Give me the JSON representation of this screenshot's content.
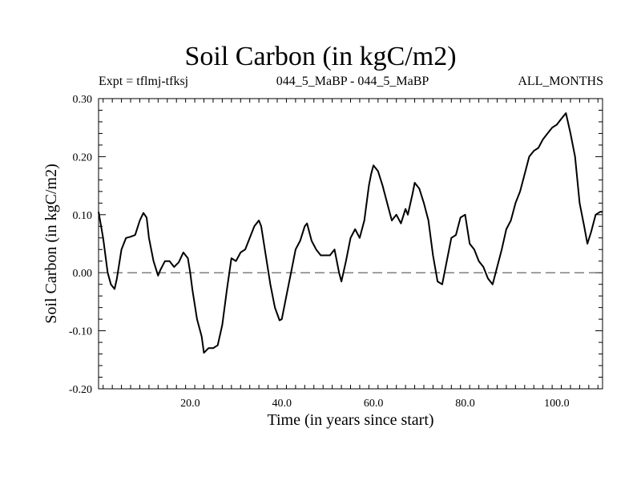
{
  "header": {
    "title": "Soil Carbon (in kgC/m2)",
    "expt": "Expt = tflmj-tfksj",
    "comparison": "044_5_MaBP - 044_5_MaBP",
    "period": "ALL_MONTHS"
  },
  "chart_data": {
    "type": "line",
    "title": "Soil Carbon (in kgC/m2)",
    "xlabel": "Time (in years since start)",
    "ylabel": "Soil Carbon (in kgC/m2)",
    "xlim": [
      0,
      110
    ],
    "ylim": [
      -0.2,
      0.3
    ],
    "x_ticks": [
      20,
      40,
      60,
      80,
      100
    ],
    "x_tick_labels": [
      "20.0",
      "40.0",
      "60.0",
      "80.0",
      "100.0"
    ],
    "y_ticks": [
      -0.2,
      -0.1,
      0.0,
      0.1,
      0.2,
      0.3
    ],
    "y_tick_labels": [
      "-0.20",
      "-0.10",
      "0.00",
      "0.10",
      "0.20",
      "0.30"
    ],
    "reference_line": {
      "y": 0.0,
      "style": "dashed"
    },
    "series": [
      {
        "name": "Soil Carbon",
        "x": [
          0.0,
          1.0,
          2.0,
          2.7,
          3.5,
          4.0,
          5.0,
          6.0,
          7.0,
          8.0,
          9.0,
          9.8,
          10.5,
          11.0,
          12.0,
          13.0,
          13.5,
          14.5,
          15.5,
          16.5,
          17.5,
          18.5,
          19.5,
          20.0,
          20.5,
          21.5,
          22.5,
          23.0,
          24.0,
          25.0,
          26.0,
          27.0,
          28.0,
          29.0,
          30.0,
          31.0,
          32.0,
          33.0,
          34.0,
          35.0,
          35.5,
          36.5,
          37.5,
          38.5,
          39.5,
          40.0,
          41.0,
          42.0,
          43.0,
          44.0,
          45.0,
          45.5,
          46.5,
          47.5,
          48.5,
          49.5,
          50.5,
          51.5,
          52.5,
          53.0,
          54.0,
          55.0,
          56.0,
          57.0,
          58.0,
          59.0,
          59.5,
          60.0,
          61.0,
          62.0,
          63.0,
          64.0,
          65.0,
          66.0,
          67.0,
          67.5,
          68.5,
          69.0,
          70.0,
          71.0,
          72.0,
          73.0,
          74.0,
          75.0,
          76.0,
          77.0,
          78.0,
          79.0,
          80.0,
          81.0,
          82.0,
          83.0,
          84.0,
          85.0,
          86.0,
          87.0,
          88.0,
          89.0,
          90.0,
          91.0,
          92.0,
          93.0,
          94.0,
          95.0,
          96.0,
          97.0,
          98.0,
          99.0,
          100.0,
          101.0,
          102.0,
          103.0,
          104.0,
          105.0,
          106.0,
          106.7,
          107.5,
          108.5,
          109.5,
          110.0
        ],
        "values": [
          0.105,
          0.06,
          0.0,
          -0.02,
          -0.028,
          -0.01,
          0.04,
          0.06,
          0.062,
          0.065,
          0.09,
          0.103,
          0.095,
          0.06,
          0.02,
          -0.005,
          0.005,
          0.02,
          0.02,
          0.01,
          0.018,
          0.035,
          0.025,
          0.0,
          -0.03,
          -0.08,
          -0.11,
          -0.138,
          -0.13,
          -0.13,
          -0.125,
          -0.09,
          -0.03,
          0.025,
          0.02,
          0.035,
          0.04,
          0.06,
          0.08,
          0.09,
          0.08,
          0.03,
          -0.02,
          -0.06,
          -0.082,
          -0.08,
          -0.04,
          0.0,
          0.04,
          0.055,
          0.08,
          0.085,
          0.055,
          0.04,
          0.03,
          0.03,
          0.03,
          0.04,
          0.0,
          -0.015,
          0.02,
          0.06,
          0.075,
          0.06,
          0.09,
          0.15,
          0.17,
          0.185,
          0.175,
          0.15,
          0.12,
          0.09,
          0.1,
          0.085,
          0.11,
          0.1,
          0.135,
          0.155,
          0.145,
          0.12,
          0.09,
          0.03,
          -0.015,
          -0.02,
          0.02,
          0.06,
          0.065,
          0.095,
          0.1,
          0.05,
          0.04,
          0.02,
          0.01,
          -0.01,
          -0.02,
          0.01,
          0.04,
          0.075,
          0.09,
          0.12,
          0.14,
          0.17,
          0.2,
          0.21,
          0.215,
          0.23,
          0.24,
          0.25,
          0.255,
          0.265,
          0.275,
          0.24,
          0.2,
          0.12,
          0.08,
          0.05,
          0.07,
          0.1,
          0.105,
          0.105
        ]
      }
    ]
  }
}
